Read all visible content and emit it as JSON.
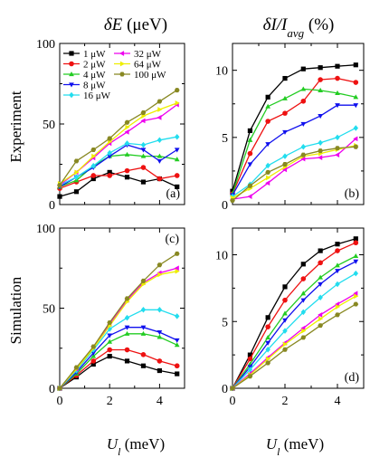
{
  "figure": {
    "col_title_left": {
      "main": "δE",
      "unit": "(μeV)"
    },
    "col_title_right": {
      "main": "δI/I",
      "sub": "avg",
      "unit": "(%)"
    },
    "row_label_top": "Experiment",
    "row_label_bottom": "Simulation",
    "xlabel": {
      "main": "U",
      "sub": "l",
      "unit": "(meV)"
    }
  },
  "series_styles": [
    {
      "name": "1 μW",
      "color": "#000000",
      "marker": "square"
    },
    {
      "name": "2 μW",
      "color": "#ee1111",
      "marker": "circle"
    },
    {
      "name": "4 μW",
      "color": "#22cc22",
      "marker": "triangle-up"
    },
    {
      "name": "8 μW",
      "color": "#1010ee",
      "marker": "triangle-down"
    },
    {
      "name": "16 μW",
      "color": "#22ddee",
      "marker": "diamond"
    },
    {
      "name": "32 μW",
      "color": "#ee00ee",
      "marker": "triangle-left"
    },
    {
      "name": "64 μW",
      "color": "#eeee00",
      "marker": "triangle-right"
    },
    {
      "name": "100 μW",
      "color": "#888822",
      "marker": "hexagon"
    }
  ],
  "chart_data": [
    {
      "type": "line",
      "panel_label": "(a)",
      "legend": "top-left",
      "xlim": [
        0,
        5
      ],
      "ylim": [
        0,
        100
      ],
      "xticks": [
        0,
        2,
        4
      ],
      "yticks": [
        0,
        50,
        100
      ],
      "ytick_labels": [
        "0",
        "50",
        "100"
      ],
      "series": [
        {
          "name": "1 μW",
          "x": [
            0,
            0.67,
            1.35,
            2.0,
            2.7,
            3.35,
            4.0,
            4.7
          ],
          "y": [
            5,
            8,
            16,
            20,
            17,
            14,
            16,
            11
          ]
        },
        {
          "name": "2 μW",
          "x": [
            0,
            0.67,
            1.35,
            2.0,
            2.7,
            3.35,
            4.0,
            4.7
          ],
          "y": [
            10,
            14,
            18,
            18,
            21,
            23,
            16,
            18
          ]
        },
        {
          "name": "4 μW",
          "x": [
            0,
            0.67,
            1.35,
            2.0,
            2.7,
            3.35,
            4.0,
            4.7
          ],
          "y": [
            11,
            15,
            24,
            30,
            31,
            30,
            30,
            28
          ]
        },
        {
          "name": "8 μW",
          "x": [
            0,
            0.67,
            1.35,
            2.0,
            2.7,
            3.35,
            4.0,
            4.7
          ],
          "y": [
            11,
            17,
            23,
            30,
            37,
            34,
            27,
            34
          ]
        },
        {
          "name": "16 μW",
          "x": [
            0,
            0.67,
            1.35,
            2.0,
            2.7,
            3.35,
            4.0,
            4.7
          ],
          "y": [
            12,
            17,
            24,
            32,
            38,
            37,
            40,
            42
          ]
        },
        {
          "name": "32 μW",
          "x": [
            0,
            0.67,
            1.35,
            2.0,
            2.7,
            3.35,
            4.0,
            4.7
          ],
          "y": [
            12,
            20,
            29,
            38,
            45,
            52,
            54,
            62
          ]
        },
        {
          "name": "64 μW",
          "x": [
            0,
            0.67,
            1.35,
            2.0,
            2.7,
            3.35,
            4.0,
            4.7
          ],
          "y": [
            13,
            20,
            30,
            39,
            48,
            55,
            59,
            63
          ]
        },
        {
          "name": "100 μW",
          "x": [
            0,
            0.67,
            1.35,
            2.0,
            2.7,
            3.35,
            4.0,
            4.7
          ],
          "y": [
            12,
            27,
            34,
            41,
            51,
            57,
            64,
            71
          ]
        }
      ]
    },
    {
      "type": "line",
      "panel_label": "(b)",
      "xlim": [
        0,
        5
      ],
      "ylim": [
        0,
        12
      ],
      "xticks": [
        0,
        2,
        4
      ],
      "yticks": [
        0,
        5,
        10
      ],
      "ytick_labels": [
        "0",
        "5",
        "10"
      ],
      "series": [
        {
          "name": "1 μW",
          "x": [
            0,
            0.67,
            1.35,
            2.0,
            2.7,
            3.35,
            4.0,
            4.7
          ],
          "y": [
            1.0,
            5.5,
            8.0,
            9.4,
            10.1,
            10.2,
            10.3,
            10.4
          ]
        },
        {
          "name": "2 μW",
          "x": [
            0,
            0.67,
            1.35,
            2.0,
            2.7,
            3.35,
            4.0,
            4.7
          ],
          "y": [
            0.8,
            3.8,
            6.2,
            6.8,
            7.7,
            9.3,
            9.4,
            9.1
          ]
        },
        {
          "name": "4 μW",
          "x": [
            0,
            0.67,
            1.35,
            2.0,
            2.7,
            3.35,
            4.0,
            4.7
          ],
          "y": [
            0.8,
            4.8,
            7.3,
            7.9,
            8.6,
            8.5,
            8.3,
            8.0
          ]
        },
        {
          "name": "8 μW",
          "x": [
            0,
            0.67,
            1.35,
            2.0,
            2.7,
            3.35,
            4.0,
            4.7
          ],
          "y": [
            0.7,
            3.0,
            4.5,
            5.4,
            6.0,
            6.6,
            7.4,
            7.4
          ]
        },
        {
          "name": "16 μW",
          "x": [
            0,
            0.67,
            1.35,
            2.0,
            2.7,
            3.35,
            4.0,
            4.7
          ],
          "y": [
            0.6,
            1.5,
            2.9,
            3.6,
            4.3,
            4.6,
            5.0,
            5.7
          ]
        },
        {
          "name": "32 μW",
          "x": [
            0,
            0.67,
            1.35,
            2.0,
            2.7,
            3.35,
            4.0,
            4.7
          ],
          "y": [
            0.4,
            0.6,
            1.6,
            2.6,
            3.4,
            3.5,
            3.7,
            4.9
          ]
        },
        {
          "name": "64 μW",
          "x": [
            0,
            0.67,
            1.35,
            2.0,
            2.7,
            3.35,
            4.0,
            4.7
          ],
          "y": [
            0.5,
            1.2,
            2.0,
            2.8,
            3.6,
            3.8,
            4.1,
            4.4
          ]
        },
        {
          "name": "100 μW",
          "x": [
            0,
            0.67,
            1.35,
            2.0,
            2.7,
            3.35,
            4.0,
            4.7
          ],
          "y": [
            0.3,
            1.4,
            2.4,
            3.0,
            3.7,
            4.0,
            4.2,
            4.3
          ]
        }
      ]
    },
    {
      "type": "line",
      "panel_label": "(c)",
      "xlim": [
        0,
        5
      ],
      "ylim": [
        0,
        100
      ],
      "xticks": [
        0,
        2,
        4
      ],
      "yticks": [
        0,
        50,
        100
      ],
      "ytick_labels": [
        "0",
        "50",
        "100"
      ],
      "xtick_labels": [
        "0",
        "2",
        "4"
      ],
      "series": [
        {
          "name": "1 μW",
          "x": [
            0,
            0.67,
            1.35,
            2.0,
            2.7,
            3.35,
            4.0,
            4.7
          ],
          "y": [
            0,
            7,
            15,
            20,
            17,
            14,
            11,
            9
          ]
        },
        {
          "name": "2 μW",
          "x": [
            0,
            0.67,
            1.35,
            2.0,
            2.7,
            3.35,
            4.0,
            4.7
          ],
          "y": [
            0,
            8,
            17,
            24,
            24,
            21,
            17,
            14
          ]
        },
        {
          "name": "4 μW",
          "x": [
            0,
            0.67,
            1.35,
            2.0,
            2.7,
            3.35,
            4.0,
            4.7
          ],
          "y": [
            0,
            9,
            20,
            29,
            34,
            34,
            32,
            27
          ]
        },
        {
          "name": "8 μW",
          "x": [
            0,
            0.67,
            1.35,
            2.0,
            2.7,
            3.35,
            4.0,
            4.7
          ],
          "y": [
            0,
            10,
            22,
            33,
            38,
            38,
            35,
            30
          ]
        },
        {
          "name": "16 μW",
          "x": [
            0,
            0.67,
            1.35,
            2.0,
            2.7,
            3.35,
            4.0,
            4.7
          ],
          "y": [
            0,
            11,
            24,
            37,
            44,
            49,
            49,
            45
          ]
        },
        {
          "name": "32 μW",
          "x": [
            0,
            0.67,
            1.35,
            2.0,
            2.7,
            3.35,
            4.0,
            4.7
          ],
          "y": [
            0,
            12,
            26,
            40,
            55,
            66,
            72,
            75
          ]
        },
        {
          "name": "64 μW",
          "x": [
            0,
            0.67,
            1.35,
            2.0,
            2.7,
            3.35,
            4.0,
            4.7
          ],
          "y": [
            0,
            12,
            25,
            39,
            54,
            65,
            71,
            73
          ]
        },
        {
          "name": "100 μW",
          "x": [
            0,
            0.67,
            1.35,
            2.0,
            2.7,
            3.35,
            4.0,
            4.7
          ],
          "y": [
            0,
            13,
            26,
            41,
            56,
            67,
            77,
            84
          ]
        }
      ]
    },
    {
      "type": "line",
      "panel_label": "(d)",
      "xlim": [
        0,
        5
      ],
      "ylim": [
        0,
        12
      ],
      "xticks": [
        0,
        2,
        4
      ],
      "yticks": [
        0,
        5,
        10
      ],
      "ytick_labels": [
        "0",
        "5",
        "10"
      ],
      "xtick_labels": [
        "0",
        "2",
        "4"
      ],
      "series": [
        {
          "name": "1 μW",
          "x": [
            0,
            0.67,
            1.35,
            2.0,
            2.7,
            3.35,
            4.0,
            4.7
          ],
          "y": [
            0,
            2.5,
            5.3,
            7.6,
            9.3,
            10.3,
            10.8,
            11.2
          ]
        },
        {
          "name": "2 μW",
          "x": [
            0,
            0.67,
            1.35,
            2.0,
            2.7,
            3.35,
            4.0,
            4.7
          ],
          "y": [
            0,
            2.2,
            4.6,
            6.6,
            8.2,
            9.4,
            10.3,
            10.9
          ]
        },
        {
          "name": "4 μW",
          "x": [
            0,
            0.67,
            1.35,
            2.0,
            2.7,
            3.35,
            4.0,
            4.7
          ],
          "y": [
            0,
            1.8,
            3.8,
            5.6,
            7.1,
            8.3,
            9.2,
            9.9
          ]
        },
        {
          "name": "8 μW",
          "x": [
            0,
            0.67,
            1.35,
            2.0,
            2.7,
            3.35,
            4.0,
            4.7
          ],
          "y": [
            0,
            1.6,
            3.4,
            5.1,
            6.6,
            7.8,
            8.8,
            9.5
          ]
        },
        {
          "name": "16 μW",
          "x": [
            0,
            0.67,
            1.35,
            2.0,
            2.7,
            3.35,
            4.0,
            4.7
          ],
          "y": [
            0,
            1.4,
            2.9,
            4.3,
            5.7,
            6.8,
            7.8,
            8.6
          ]
        },
        {
          "name": "32 μW",
          "x": [
            0,
            0.67,
            1.35,
            2.0,
            2.7,
            3.35,
            4.0,
            4.7
          ],
          "y": [
            0,
            1.1,
            2.3,
            3.4,
            4.5,
            5.5,
            6.3,
            7.1
          ]
        },
        {
          "name": "64 μW",
          "x": [
            0,
            0.67,
            1.35,
            2.0,
            2.7,
            3.35,
            4.0,
            4.7
          ],
          "y": [
            0,
            1.0,
            2.2,
            3.3,
            4.3,
            5.2,
            6.1,
            6.9
          ]
        },
        {
          "name": "100 μW",
          "x": [
            0,
            0.67,
            1.35,
            2.0,
            2.7,
            3.35,
            4.0,
            4.7
          ],
          "y": [
            0,
            0.9,
            1.9,
            2.9,
            3.8,
            4.7,
            5.5,
            6.3
          ]
        }
      ]
    }
  ]
}
